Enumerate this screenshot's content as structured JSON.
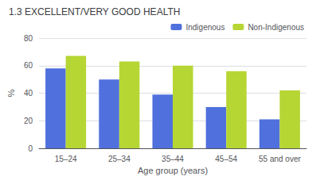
{
  "chart_data": {
    "type": "bar",
    "title": "1.3 EXCELLENT/VERY GOOD HEALTH",
    "xlabel": "Age group (years)",
    "ylabel": "%",
    "categories": [
      "15–24",
      "25–34",
      "35–44",
      "45–54",
      "55 and over"
    ],
    "series": [
      {
        "name": "Indigenous",
        "values": [
          58,
          50,
          39,
          30,
          21
        ]
      },
      {
        "name": "Non-Indigenous",
        "values": [
          67,
          63,
          60,
          56,
          42
        ]
      }
    ],
    "ylim": [
      0,
      80
    ],
    "yticks": [
      0,
      20,
      40,
      60,
      80
    ],
    "grid": true,
    "legend": "upper right"
  }
}
